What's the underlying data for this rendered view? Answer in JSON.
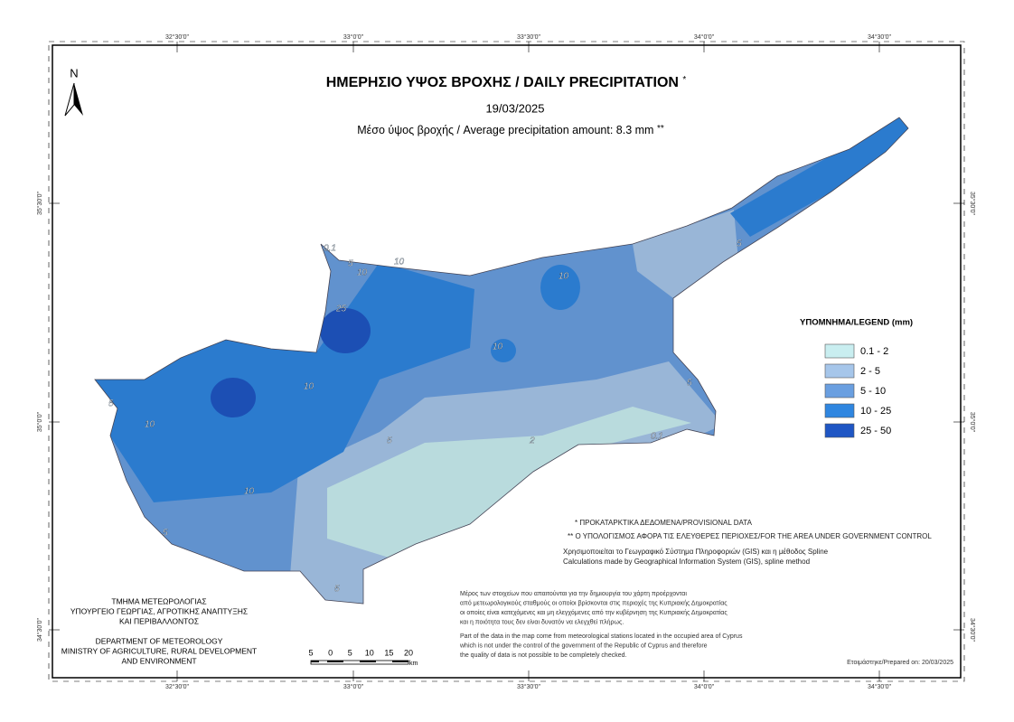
{
  "header": {
    "title": "ΗΜΕΡΗΣΙΟ ΥΨΟΣ ΒΡΟΧΗΣ / DAILY PRECIPITATION",
    "title_mark": "*",
    "date": "19/03/2025",
    "average": "Μέσο ύψος βροχής / Average precipitation amount: 8.3 mm",
    "average_mark": "**"
  },
  "north": "N",
  "graticule": {
    "longitudes": [
      "32°30'0\"",
      "33°0'0\"",
      "33°30'0\"",
      "34°0'0\"",
      "34°30'0\""
    ],
    "latitudes": [
      "35°30'0\"",
      "35°0'0\"",
      "34°30'0\""
    ]
  },
  "legend": {
    "title": "ΥΠΟΜΝΗΜΑ/LEGEND (mm)",
    "items": [
      {
        "label": "0.1 - 2",
        "color": "#c9eef0"
      },
      {
        "label": "2 - 5",
        "color": "#a6c6ea"
      },
      {
        "label": "5 - 10",
        "color": "#6a9fe0"
      },
      {
        "label": "10 - 25",
        "color": "#2f86e0"
      },
      {
        "label": "25 - 50",
        "color": "#1f56c4"
      }
    ]
  },
  "contour_labels": [
    "10",
    "25",
    "10",
    "5",
    "10",
    "10",
    "5",
    "2",
    "0.1",
    "5",
    "10",
    "5",
    "5",
    "10",
    "5",
    "0.1",
    "5",
    "10"
  ],
  "notes": {
    "provisional": "* ΠΡΟΚΑΤΑΡΚΤΙΚΑ ΔΕΔΟΜΕΝΑ/PROVISIONAL DATA",
    "area": "** Ο ΥΠΟΛΟΓΙΣΜΟΣ ΑΦΟΡΑ ΤΙΣ ΕΛΕΥΘΕΡΕΣ ΠΕΡΙΟΧΕΣ/FOR THE AREA UNDER GOVERNMENT CONTROL",
    "method": [
      "Χρησιμοποιείται το Γεωγραφικό Σύστημα Πληροφοριών (GIS) και η μέθοδος Spline",
      "Calculations made by Geographical Information System (GIS), spline method"
    ],
    "disclaimer_gr": [
      "Μέρος των στοιχείων που απαιτούνται για την δημιουργία του χάρτη προέρχονται",
      "από μετεωρολογικούς σταθμούς οι οποίοι βρίσκονται στις περιοχές της Κυπριακής Δημοκρατίας",
      "οι οποίες είναι κατεχόμενες και μη ελεγχόμενες από την κυβέρνηση της Κυπριακής Δημοκρατίας",
      "και η ποιότητα τους δεν είναι δυνατόν να ελεγχθεί πλήρως."
    ],
    "disclaimer_en": [
      "Part of the data in the map come from meteorological stations located in the occupied area of Cyprus",
      "which is not under the control of the government of the Republic of Cyprus and therefore",
      "the quality of data is not possible to be completely checked."
    ],
    "prepared": "Ετοιμάστηκε/Prepared on: 20/03/2025"
  },
  "organisation": {
    "greek": [
      "ΤΜΗΜΑ ΜΕΤΕΩΡΟΛΟΓΙΑΣ",
      "ΥΠΟΥΡΓΕΙΟ ΓΕΩΡΓΙΑΣ, ΑΓΡΟΤΙΚΗΣ ΑΝΑΠΤΥΞΗΣ",
      "ΚΑΙ ΠΕΡΙΒΑΛΛΟΝΤΟΣ"
    ],
    "english": [
      "DEPARTMENT OF METEOROLOGY",
      "MINISTRY OF AGRICULTURE, RURAL DEVELOPMENT",
      "AND ENVIRONMENT"
    ]
  },
  "scale": {
    "labels": [
      "5",
      "0",
      "5",
      "10",
      "15",
      "20"
    ],
    "unit": "km"
  }
}
